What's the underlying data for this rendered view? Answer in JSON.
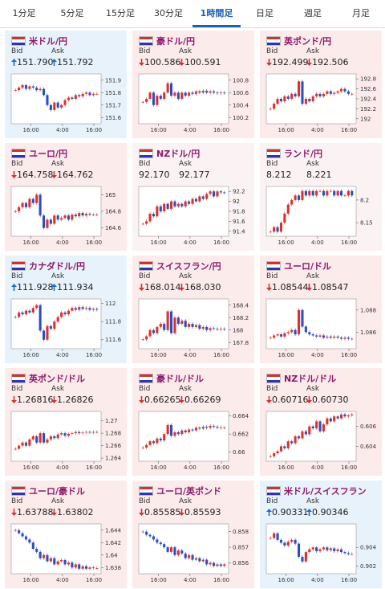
{
  "tabs": [
    "1分足",
    "5分足",
    "15分足",
    "30分足",
    "1時間足",
    "日足",
    "週足",
    "月足"
  ],
  "active_tab": 4,
  "bid_label": "Bid",
  "ask_label": "Ask",
  "xticks": [
    "16:00",
    "4:00",
    "16:00"
  ],
  "panels": [
    {
      "name": "米ドル/円",
      "direction": "up",
      "bid": "151.790",
      "ask": "151.792",
      "ylim": [
        151.55,
        151.95
      ],
      "yticks": [
        151.9,
        151.8,
        151.7,
        151.6
      ],
      "prices": [
        151.82,
        151.84,
        151.86,
        151.83,
        151.85,
        151.84,
        151.82,
        151.83,
        151.78,
        151.7,
        151.66,
        151.72,
        151.68,
        151.7,
        151.74,
        151.76,
        151.75,
        151.78,
        151.77,
        151.79,
        151.8,
        151.78,
        151.79,
        151.79
      ]
    },
    {
      "name": "豪ドル/円",
      "direction": "down",
      "bid": "100.586",
      "ask": "100.591",
      "ylim": [
        100.1,
        100.9
      ],
      "yticks": [
        100.8,
        100.6,
        100.4,
        100.2
      ],
      "prices": [
        100.45,
        100.5,
        100.6,
        100.4,
        100.55,
        100.5,
        100.6,
        100.75,
        100.55,
        100.6,
        100.5,
        100.6,
        100.55,
        100.6,
        100.58,
        100.62,
        100.6,
        100.63,
        100.6,
        100.62,
        100.6,
        100.59,
        100.6,
        100.59
      ]
    },
    {
      "name": "英ポンド/円",
      "direction": "down",
      "bid": "192.499",
      "ask": "192.506",
      "ylim": [
        191.9,
        192.9
      ],
      "yticks": [
        192.8,
        192.6,
        192.4,
        192.2,
        192
      ],
      "prices": [
        192.2,
        192.3,
        192.4,
        192.35,
        192.45,
        192.4,
        192.5,
        192.45,
        192.75,
        192.3,
        192.4,
        192.35,
        192.45,
        192.5,
        192.45,
        192.5,
        192.55,
        192.5,
        192.52,
        192.55,
        192.6,
        192.55,
        192.5,
        192.5
      ]
    },
    {
      "name": "ユーロ/円",
      "direction": "down",
      "bid": "164.758",
      "ask": "164.762",
      "ylim": [
        164.5,
        165.1
      ],
      "yticks": [
        165,
        164.8,
        164.6
      ],
      "prices": [
        164.8,
        164.85,
        164.9,
        164.85,
        164.95,
        164.9,
        165.0,
        164.75,
        164.6,
        164.7,
        164.65,
        164.75,
        164.7,
        164.72,
        164.75,
        164.7,
        164.76,
        164.74,
        164.78,
        164.75,
        164.77,
        164.76,
        164.76,
        164.76
      ]
    },
    {
      "name": "NZドル/円",
      "direction": null,
      "bid": "92.170",
      "ask": "92.177",
      "ylim": [
        91.3,
        92.3
      ],
      "yticks": [
        92.2,
        92,
        91.8,
        91.6,
        91.4
      ],
      "prices": [
        91.55,
        91.6,
        91.75,
        91.7,
        91.9,
        91.8,
        91.95,
        91.85,
        92.0,
        91.9,
        91.95,
        91.9,
        92.0,
        91.95,
        92.05,
        92.0,
        92.1,
        92.05,
        92.15,
        92.2,
        92.1,
        92.2,
        92.18,
        92.17
      ]
    },
    {
      "name": "ランド/円",
      "direction": null,
      "bid": "8.212",
      "ask": "8.221",
      "ylim": [
        8.12,
        8.23
      ],
      "yticks": [
        8.2,
        8.15
      ],
      "prices": [
        8.13,
        8.14,
        8.13,
        8.15,
        8.17,
        8.19,
        8.2,
        8.21,
        8.2,
        8.22,
        8.21,
        8.22,
        8.21,
        8.22,
        8.22,
        8.21,
        8.22,
        8.22,
        8.21,
        8.22,
        8.21,
        8.21,
        8.22,
        8.21
      ]
    },
    {
      "name": "カナダドル/円",
      "direction": "up",
      "bid": "111.928",
      "ask": "111.934",
      "ylim": [
        111.5,
        112.05
      ],
      "yticks": [
        112,
        111.8,
        111.6
      ],
      "prices": [
        111.85,
        111.9,
        111.88,
        111.92,
        111.9,
        111.95,
        111.98,
        111.7,
        111.6,
        111.75,
        111.72,
        111.8,
        111.85,
        111.9,
        111.88,
        111.92,
        111.95,
        111.93,
        111.96,
        111.94,
        111.95,
        111.93,
        111.94,
        111.93
      ]
    },
    {
      "name": "スイスフラン/円",
      "direction": "down",
      "bid": "168.014",
      "ask": "168.030",
      "ylim": [
        167.7,
        168.5
      ],
      "yticks": [
        168.4,
        168.2,
        168,
        167.8
      ],
      "prices": [
        167.85,
        167.9,
        168.0,
        167.95,
        168.05,
        168.1,
        168.0,
        168.3,
        167.95,
        168.2,
        168.1,
        168.15,
        168.05,
        168.1,
        168.05,
        168.08,
        168.02,
        168.05,
        168.0,
        168.03,
        168.02,
        168.01,
        168.02,
        168.01
      ]
    },
    {
      "name": "ユーロ/ドル",
      "direction": "down",
      "bid": "1.08544",
      "ask": "1.08547",
      "ylim": [
        1.0845,
        1.089
      ],
      "yticks": [
        1.088,
        1.086
      ],
      "prices": [
        1.0855,
        1.0857,
        1.0858,
        1.0856,
        1.0859,
        1.086,
        1.0862,
        1.0858,
        1.088,
        1.0865,
        1.086,
        1.0858,
        1.0857,
        1.0856,
        1.0857,
        1.0855,
        1.0856,
        1.0855,
        1.0856,
        1.0855,
        1.0854,
        1.0855,
        1.0854,
        1.0854
      ]
    },
    {
      "name": "英ポンド/ドル",
      "direction": "down",
      "bid": "1.26816",
      "ask": "1.26826",
      "ylim": [
        1.2635,
        1.2715
      ],
      "yticks": [
        1.27,
        1.268,
        1.266,
        1.264
      ],
      "prices": [
        1.2655,
        1.266,
        1.2665,
        1.266,
        1.267,
        1.2675,
        1.2665,
        1.268,
        1.2665,
        1.267,
        1.2675,
        1.2672,
        1.2678,
        1.268,
        1.2676,
        1.2679,
        1.268,
        1.2682,
        1.268,
        1.2681,
        1.2682,
        1.2681,
        1.2682,
        1.2682
      ]
    },
    {
      "name": "豪ドル/ドル",
      "direction": "down",
      "bid": "0.66265",
      "ask": "0.66269",
      "ylim": [
        0.659,
        0.6645
      ],
      "yticks": [
        0.664,
        0.662,
        0.66
      ],
      "prices": [
        0.6605,
        0.6608,
        0.6612,
        0.661,
        0.6615,
        0.6613,
        0.662,
        0.663,
        0.6618,
        0.6622,
        0.662,
        0.6624,
        0.6622,
        0.6625,
        0.6624,
        0.6627,
        0.6626,
        0.6628,
        0.6627,
        0.6629,
        0.6628,
        0.6627,
        0.6627,
        0.6627
      ]
    },
    {
      "name": "NZドル/ドル",
      "direction": "down",
      "bid": "0.60716",
      "ask": "0.60730",
      "ylim": [
        0.6025,
        0.6075
      ],
      "yticks": [
        0.606,
        0.604
      ],
      "prices": [
        0.603,
        0.6033,
        0.6035,
        0.604,
        0.6038,
        0.6045,
        0.6043,
        0.605,
        0.6048,
        0.6055,
        0.6052,
        0.606,
        0.6058,
        0.6065,
        0.6055,
        0.6062,
        0.6068,
        0.6065,
        0.607,
        0.6068,
        0.6072,
        0.607,
        0.6071,
        0.6072
      ]
    },
    {
      "name": "ユーロ/豪ドル",
      "direction": "down",
      "bid": "1.63788",
      "ask": "1.63802",
      "ylim": [
        1.637,
        1.645
      ],
      "yticks": [
        1.644,
        1.642,
        1.64,
        1.638
      ],
      "prices": [
        1.644,
        1.6435,
        1.643,
        1.6425,
        1.642,
        1.641,
        1.6405,
        1.6395,
        1.64,
        1.639,
        1.6395,
        1.6385,
        1.639,
        1.6392,
        1.6385,
        1.6388,
        1.638,
        1.6385,
        1.6378,
        1.6382,
        1.6378,
        1.638,
        1.6379,
        1.6379
      ]
    },
    {
      "name": "ユーロ/英ポンド",
      "direction": "down",
      "bid": "0.85585",
      "ask": "0.85593",
      "ylim": [
        0.8553,
        0.8585
      ],
      "yticks": [
        0.858,
        0.857,
        0.856
      ],
      "prices": [
        0.858,
        0.8578,
        0.8577,
        0.8575,
        0.8573,
        0.8572,
        0.857,
        0.8567,
        0.857,
        0.8565,
        0.8568,
        0.8566,
        0.8563,
        0.8565,
        0.8562,
        0.8563,
        0.8561,
        0.8562,
        0.8559,
        0.856,
        0.8558,
        0.8559,
        0.8558,
        0.8559
      ]
    },
    {
      "name": "米ドル/スイスフラン",
      "direction": "up",
      "bid": "0.90331",
      "ask": "0.90346",
      "ylim": [
        0.9012,
        0.9065
      ],
      "yticks": [
        0.904,
        0.902
      ],
      "prices": [
        0.905,
        0.9055,
        0.9048,
        0.9045,
        0.9042,
        0.9046,
        0.9048,
        0.9044,
        0.903,
        0.9025,
        0.9035,
        0.9038,
        0.904,
        0.9036,
        0.9038,
        0.904,
        0.9037,
        0.9039,
        0.9036,
        0.9038,
        0.9035,
        0.9034,
        0.9033,
        0.9033
      ]
    }
  ]
}
